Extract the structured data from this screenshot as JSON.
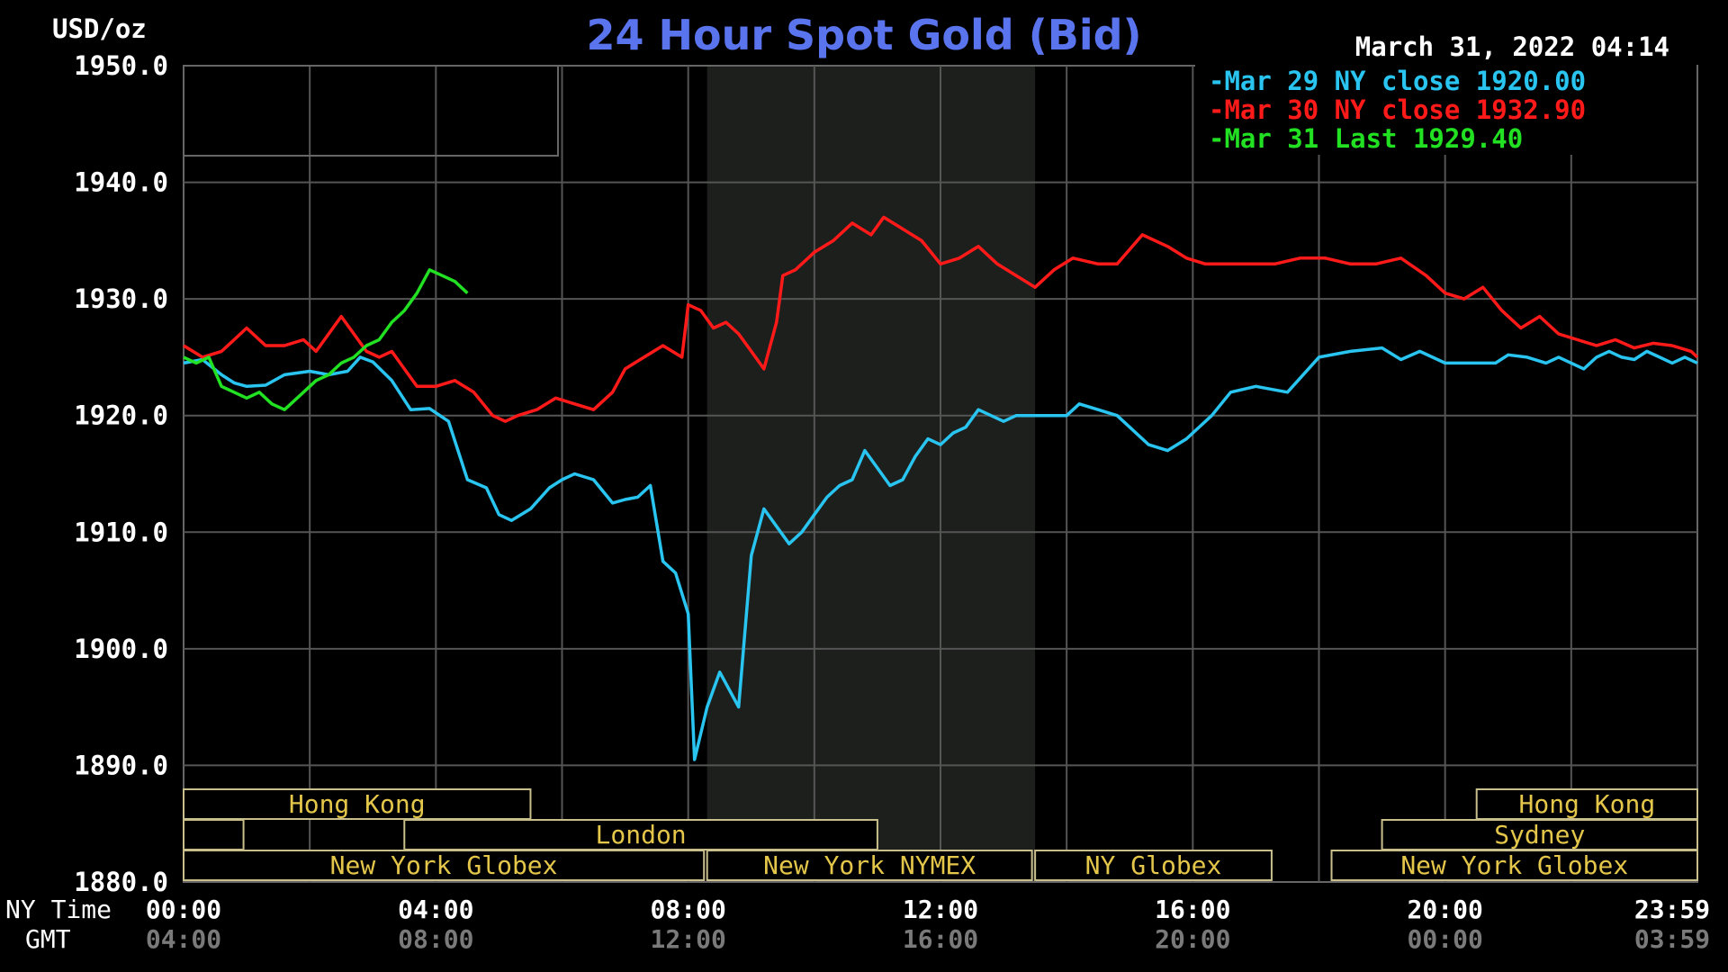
{
  "chart_data": {
    "type": "line",
    "title": "24 Hour Spot Gold (Bid)",
    "ylabel": "USD/oz",
    "timestamp": "March 31, 2022 04:14",
    "ylim": [
      1880,
      1950
    ],
    "xlim_hours": [
      0,
      24
    ],
    "y_ticks": [
      "1950.0",
      "1940.0",
      "1930.0",
      "1920.0",
      "1910.0",
      "1900.0",
      "1890.0",
      "1880.0"
    ],
    "y_tick_values": [
      1950,
      1940,
      1930,
      1920,
      1910,
      1900,
      1890,
      1880
    ],
    "x_axis_label_ny": "NY Time",
    "x_axis_label_gmt": "GMT",
    "x_tick_hours": [
      0,
      4,
      8,
      12,
      16,
      20,
      24
    ],
    "x_ticks_ny": [
      "00:00",
      "04:00",
      "08:00",
      "12:00",
      "16:00",
      "20:00",
      "23:59"
    ],
    "x_ticks_gmt": [
      "04:00",
      "08:00",
      "12:00",
      "16:00",
      "20:00",
      "00:00",
      "03:59"
    ],
    "grid": true,
    "shaded_hours": [
      8.3,
      13.5
    ],
    "legend": [
      {
        "marker": "-",
        "date": "Mar 29",
        "label": "NY close",
        "value": "1920.00",
        "color": "#29c5f0"
      },
      {
        "marker": "-",
        "date": "Mar 30",
        "label": "NY close",
        "value": "1932.90",
        "color": "#ff1a1a"
      },
      {
        "marker": "-",
        "date": "Mar 31",
        "label": "Last",
        "value": "1929.40",
        "color": "#22e022"
      }
    ],
    "series": [
      {
        "color": "#29c5f0",
        "x": [
          0,
          0.3,
          0.6,
          0.8,
          1.0,
          1.3,
          1.6,
          2.0,
          2.3,
          2.6,
          2.8,
          3.0,
          3.3,
          3.6,
          3.9,
          4.2,
          4.5,
          4.8,
          5.0,
          5.2,
          5.5,
          5.8,
          6.0,
          6.2,
          6.5,
          6.8,
          7.0,
          7.2,
          7.4,
          7.6,
          7.8,
          8.0,
          8.1,
          8.3,
          8.5,
          8.6,
          8.8,
          9.0,
          9.2,
          9.4,
          9.6,
          9.8,
          10.0,
          10.2,
          10.4,
          10.6,
          10.8,
          11.0,
          11.2,
          11.4,
          11.6,
          11.8,
          12.0,
          12.2,
          12.4,
          12.6,
          12.8,
          13.0,
          13.2,
          13.4,
          13.6,
          13.8,
          14.0,
          14.2,
          14.5,
          14.8,
          15.0,
          15.3,
          15.6,
          15.9,
          16.0,
          16.3,
          16.6,
          17.0,
          17.5,
          18.0,
          18.5,
          19.0,
          19.3,
          19.6,
          20.0,
          20.4,
          20.8,
          21.0,
          21.3,
          21.6,
          21.8,
          22.0,
          22.2,
          22.4,
          22.6,
          22.8,
          23.0,
          23.2,
          23.4,
          23.6,
          23.8,
          24.0
        ],
        "y": [
          1924.5,
          1924.8,
          1923.5,
          1922.8,
          1922.5,
          1922.6,
          1923.5,
          1923.8,
          1923.5,
          1923.8,
          1925.0,
          1924.6,
          1923.0,
          1920.5,
          1920.6,
          1919.5,
          1914.5,
          1913.8,
          1911.5,
          1911.0,
          1912.0,
          1913.8,
          1914.5,
          1915.0,
          1914.5,
          1912.5,
          1912.8,
          1913.0,
          1914.0,
          1907.5,
          1906.5,
          1903.0,
          1890.5,
          1895.0,
          1898.0,
          1897.0,
          1895.0,
          1908.0,
          1912.0,
          1910.5,
          1909.0,
          1910.0,
          1911.5,
          1913.0,
          1914.0,
          1914.5,
          1917.0,
          1915.5,
          1914.0,
          1914.5,
          1916.5,
          1918.0,
          1917.5,
          1918.5,
          1919.0,
          1920.5,
          1920.0,
          1919.5,
          1920.0,
          1920.0,
          1920.0,
          1920.0,
          1920.0,
          1921.0,
          1920.5,
          1920.0,
          1919.0,
          1917.5,
          1917.0,
          1918.0,
          1918.5,
          1920.0,
          1922.0,
          1922.5,
          1922.0,
          1925.0,
          1925.5,
          1925.8,
          1924.8,
          1925.5,
          1924.5,
          1924.5,
          1924.5,
          1925.2,
          1925.0,
          1924.5,
          1925.0,
          1924.5,
          1924.0,
          1925.0,
          1925.5,
          1925.0,
          1924.8,
          1925.5,
          1925.0,
          1924.5,
          1925.0,
          1924.5
        ]
      },
      {
        "color": "#ff1a1a",
        "x": [
          0,
          0.3,
          0.6,
          0.8,
          1.0,
          1.3,
          1.6,
          1.9,
          2.1,
          2.3,
          2.5,
          2.7,
          2.9,
          3.1,
          3.3,
          3.5,
          3.7,
          4.0,
          4.3,
          4.6,
          4.9,
          5.1,
          5.3,
          5.6,
          5.9,
          6.2,
          6.5,
          6.8,
          7.0,
          7.3,
          7.6,
          7.9,
          8.0,
          8.2,
          8.4,
          8.6,
          8.8,
          9.0,
          9.2,
          9.4,
          9.5,
          9.7,
          10.0,
          10.3,
          10.6,
          10.9,
          11.1,
          11.4,
          11.7,
          12.0,
          12.3,
          12.6,
          12.9,
          13.2,
          13.5,
          13.8,
          14.1,
          14.5,
          14.8,
          15.2,
          15.6,
          15.9,
          16.2,
          16.5,
          16.9,
          17.3,
          17.7,
          18.1,
          18.5,
          18.9,
          19.3,
          19.7,
          20.0,
          20.3,
          20.6,
          20.9,
          21.2,
          21.5,
          21.8,
          22.1,
          22.4,
          22.7,
          23.0,
          23.3,
          23.6,
          23.9,
          24.0
        ],
        "y": [
          1926.0,
          1925.0,
          1925.5,
          1926.5,
          1927.5,
          1926.0,
          1926.0,
          1926.5,
          1925.5,
          1927.0,
          1928.5,
          1927.0,
          1925.5,
          1925.0,
          1925.5,
          1924.0,
          1922.5,
          1922.5,
          1923.0,
          1922.0,
          1920.0,
          1919.5,
          1920.0,
          1920.5,
          1921.5,
          1921.0,
          1920.5,
          1922.0,
          1924.0,
          1925.0,
          1926.0,
          1925.0,
          1929.5,
          1929.0,
          1927.5,
          1928.0,
          1927.0,
          1925.5,
          1924.0,
          1928.0,
          1932.0,
          1932.5,
          1934.0,
          1935.0,
          1936.5,
          1935.5,
          1937.0,
          1936.0,
          1935.0,
          1933.0,
          1933.5,
          1934.5,
          1933.0,
          1932.0,
          1931.0,
          1932.5,
          1933.5,
          1933.0,
          1933.0,
          1935.5,
          1934.5,
          1933.5,
          1933.0,
          1933.0,
          1933.0,
          1933.0,
          1933.5,
          1933.5,
          1933.0,
          1933.0,
          1933.5,
          1932.0,
          1930.5,
          1930.0,
          1931.0,
          1929.0,
          1927.5,
          1928.5,
          1927.0,
          1926.5,
          1926.0,
          1926.5,
          1925.8,
          1926.2,
          1926.0,
          1925.5,
          1925.0
        ]
      },
      {
        "color": "#22e022",
        "x": [
          0,
          0.2,
          0.4,
          0.6,
          0.8,
          1.0,
          1.2,
          1.4,
          1.6,
          1.7,
          1.9,
          2.1,
          2.3,
          2.5,
          2.7,
          2.9,
          3.1,
          3.3,
          3.5,
          3.7,
          3.9,
          4.1,
          4.3,
          4.5
        ],
        "y": [
          1925.0,
          1924.5,
          1925.0,
          1922.5,
          1922.0,
          1921.5,
          1922.0,
          1921.0,
          1920.5,
          1921.0,
          1922.0,
          1923.0,
          1923.5,
          1924.5,
          1925.0,
          1926.0,
          1926.5,
          1928.0,
          1929.0,
          1930.5,
          1932.5,
          1932.0,
          1931.5,
          1930.5
        ]
      }
    ],
    "session_rows": [
      [
        {
          "label": "Hong Kong",
          "start": 0,
          "end": 5.5
        },
        {
          "label": "Hong Kong",
          "start": 20.5,
          "end": 24
        }
      ],
      [
        {
          "label": "",
          "start": 0,
          "end": 0.95
        },
        {
          "label": "London",
          "start": 3.5,
          "end": 11.0
        },
        {
          "label": "Sydney",
          "start": 19.0,
          "end": 24
        }
      ],
      [
        {
          "label": "New York Globex",
          "start": 0,
          "end": 8.25
        },
        {
          "label": "New York NYMEX",
          "start": 8.3,
          "end": 13.45
        },
        {
          "label": "NY Globex",
          "start": 13.5,
          "end": 17.25
        },
        {
          "label": "New York Globex",
          "start": 18.2,
          "end": 24
        }
      ]
    ]
  }
}
